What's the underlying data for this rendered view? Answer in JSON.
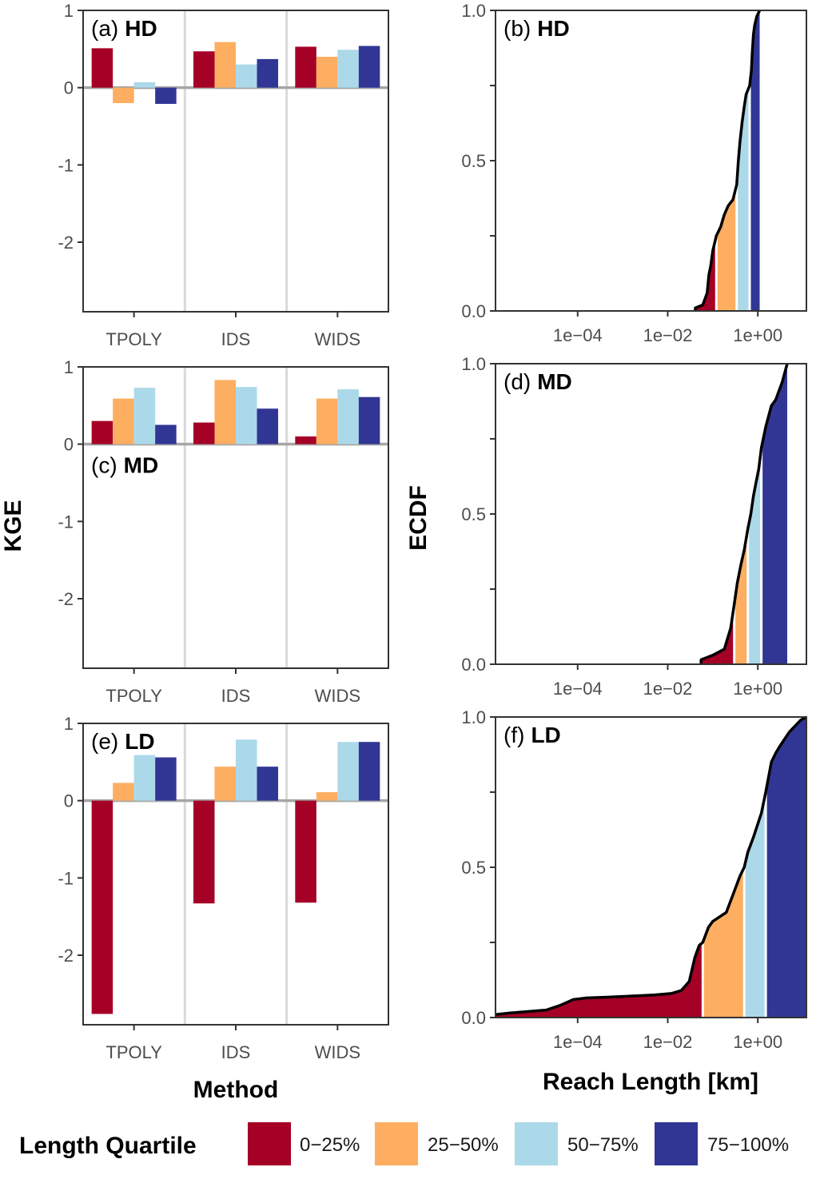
{
  "axis_titles": {
    "kge": "KGE",
    "ecdf": "ECDF",
    "method": "Method",
    "reach_length": "Reach Length [km]"
  },
  "legend": {
    "title": "Length Quartile",
    "items": [
      {
        "label": "0−25%",
        "color": "#A50026"
      },
      {
        "label": "25−50%",
        "color": "#FDAE61"
      },
      {
        "label": "50−75%",
        "color": "#ABD9E9"
      },
      {
        "label": "75−100%",
        "color": "#313695"
      }
    ]
  },
  "chart_data": [
    {
      "type": "bar",
      "panel": "(a)",
      "domain_label": "HD",
      "categories": [
        "TPOLY",
        "IDS",
        "WIDS"
      ],
      "series": [
        {
          "name": "0−25%",
          "values": [
            0.51,
            0.47,
            0.53
          ]
        },
        {
          "name": "25−50%",
          "values": [
            -0.2,
            0.59,
            0.4
          ]
        },
        {
          "name": "50−75%",
          "values": [
            0.07,
            0.3,
            0.49
          ]
        },
        {
          "name": "75−100%",
          "values": [
            -0.21,
            0.37,
            0.54
          ]
        }
      ],
      "ylim": [
        -2.9,
        1.0
      ],
      "yticks": [
        -2,
        -1,
        0,
        1
      ],
      "ylabel": "KGE",
      "xlabel": "Method"
    },
    {
      "type": "area",
      "panel": "(b)",
      "domain_label": "HD",
      "x_scale": "log",
      "xlim": [
        1.5e-06,
        12
      ],
      "xticks": [
        0.0001,
        0.01,
        1
      ],
      "xtick_labels": [
        "1e−04",
        "1e−02",
        "1e+00"
      ],
      "ylim": [
        0,
        1
      ],
      "yticks": [
        0,
        0.5,
        1
      ],
      "ytick_labels": [
        "0.0",
        "0.5",
        "1.0"
      ],
      "ylabel": "ECDF",
      "xlabel": "Reach Length [km]",
      "quartile_breaks": [
        0.12,
        0.34,
        0.66
      ],
      "ecdf": [
        [
          0.041,
          0.0
        ],
        [
          0.041,
          0.01
        ],
        [
          0.06,
          0.02
        ],
        [
          0.075,
          0.06
        ],
        [
          0.082,
          0.12
        ],
        [
          0.09,
          0.15
        ],
        [
          0.1,
          0.2
        ],
        [
          0.12,
          0.25
        ],
        [
          0.15,
          0.28
        ],
        [
          0.18,
          0.32
        ],
        [
          0.22,
          0.35
        ],
        [
          0.28,
          0.37
        ],
        [
          0.34,
          0.42
        ],
        [
          0.37,
          0.5
        ],
        [
          0.4,
          0.56
        ],
        [
          0.45,
          0.63
        ],
        [
          0.5,
          0.68
        ],
        [
          0.55,
          0.72
        ],
        [
          0.66,
          0.75
        ],
        [
          0.72,
          0.8
        ],
        [
          0.76,
          0.87
        ],
        [
          0.8,
          0.92
        ],
        [
          0.85,
          0.95
        ],
        [
          0.95,
          0.98
        ],
        [
          1.1,
          1.0
        ]
      ]
    },
    {
      "type": "bar",
      "panel": "(c)",
      "domain_label": "MD",
      "categories": [
        "TPOLY",
        "IDS",
        "WIDS"
      ],
      "series": [
        {
          "name": "0−25%",
          "values": [
            0.3,
            0.28,
            0.1
          ]
        },
        {
          "name": "25−50%",
          "values": [
            0.59,
            0.83,
            0.59
          ]
        },
        {
          "name": "50−75%",
          "values": [
            0.73,
            0.74,
            0.71
          ]
        },
        {
          "name": "75−100%",
          "values": [
            0.25,
            0.46,
            0.61
          ]
        }
      ],
      "ylim": [
        -2.9,
        1.0
      ],
      "yticks": [
        -2,
        -1,
        0,
        1
      ],
      "ylabel": "KGE",
      "xlabel": "Method"
    },
    {
      "type": "area",
      "panel": "(d)",
      "domain_label": "MD",
      "x_scale": "log",
      "xlim": [
        1.5e-06,
        12
      ],
      "xticks": [
        0.0001,
        0.01,
        1
      ],
      "xtick_labels": [
        "1e−04",
        "1e−02",
        "1e+00"
      ],
      "ylim": [
        0,
        1
      ],
      "yticks": [
        0,
        0.5,
        1
      ],
      "ytick_labels": [
        "0.0",
        "0.5",
        "1.0"
      ],
      "ylabel": "ECDF",
      "xlabel": "Reach Length [km]",
      "quartile_breaks": [
        0.3,
        0.6,
        1.2
      ],
      "ecdf": [
        [
          0.055,
          0.0
        ],
        [
          0.055,
          0.015
        ],
        [
          0.1,
          0.03
        ],
        [
          0.18,
          0.05
        ],
        [
          0.25,
          0.12
        ],
        [
          0.3,
          0.2
        ],
        [
          0.35,
          0.27
        ],
        [
          0.42,
          0.33
        ],
        [
          0.5,
          0.38
        ],
        [
          0.6,
          0.45
        ],
        [
          0.7,
          0.5
        ],
        [
          0.8,
          0.56
        ],
        [
          0.9,
          0.6
        ],
        [
          1.05,
          0.65
        ],
        [
          1.2,
          0.72
        ],
        [
          1.5,
          0.79
        ],
        [
          2.0,
          0.86
        ],
        [
          2.5,
          0.88
        ],
        [
          3.5,
          0.94
        ],
        [
          4.5,
          1.0
        ]
      ]
    },
    {
      "type": "bar",
      "panel": "(e)",
      "domain_label": "LD",
      "categories": [
        "TPOLY",
        "IDS",
        "WIDS"
      ],
      "series": [
        {
          "name": "0−25%",
          "values": [
            -2.76,
            -1.33,
            -1.32
          ]
        },
        {
          "name": "25−50%",
          "values": [
            0.23,
            0.44,
            0.11
          ]
        },
        {
          "name": "50−75%",
          "values": [
            0.59,
            0.79,
            0.76
          ]
        },
        {
          "name": "75−100%",
          "values": [
            0.56,
            0.44,
            0.76
          ]
        }
      ],
      "ylim": [
        -2.9,
        1.0
      ],
      "yticks": [
        -2,
        -1,
        0,
        1
      ],
      "ylabel": "KGE",
      "xlabel": "Method"
    },
    {
      "type": "area",
      "panel": "(f)",
      "domain_label": "LD",
      "x_scale": "log",
      "xlim": [
        1.5e-06,
        12
      ],
      "xticks": [
        0.0001,
        0.01,
        1
      ],
      "xtick_labels": [
        "1e−04",
        "1e−02",
        "1e+00"
      ],
      "ylim": [
        0,
        1
      ],
      "yticks": [
        0,
        0.5,
        1
      ],
      "ytick_labels": [
        "0.0",
        "0.5",
        "1.0"
      ],
      "ylabel": "ECDF",
      "xlabel": "Reach Length [km]",
      "quartile_breaks": [
        0.06,
        0.5,
        1.5
      ],
      "ecdf": [
        [
          1.5e-06,
          0.01
        ],
        [
          3e-06,
          0.015
        ],
        [
          2e-05,
          0.025
        ],
        [
          4e-05,
          0.04
        ],
        [
          8e-05,
          0.06
        ],
        [
          0.00015,
          0.065
        ],
        [
          0.001,
          0.07
        ],
        [
          0.005,
          0.075
        ],
        [
          0.012,
          0.08
        ],
        [
          0.02,
          0.09
        ],
        [
          0.03,
          0.12
        ],
        [
          0.04,
          0.2
        ],
        [
          0.05,
          0.24
        ],
        [
          0.06,
          0.25
        ],
        [
          0.08,
          0.3
        ],
        [
          0.1,
          0.32
        ],
        [
          0.2,
          0.35
        ],
        [
          0.3,
          0.42
        ],
        [
          0.4,
          0.47
        ],
        [
          0.5,
          0.5
        ],
        [
          0.6,
          0.55
        ],
        [
          0.8,
          0.6
        ],
        [
          1.2,
          0.68
        ],
        [
          1.5,
          0.75
        ],
        [
          2.0,
          0.85
        ],
        [
          2.5,
          0.88
        ],
        [
          3.0,
          0.9
        ],
        [
          5.0,
          0.95
        ],
        [
          9.0,
          0.99
        ],
        [
          12,
          1.0
        ]
      ]
    }
  ]
}
